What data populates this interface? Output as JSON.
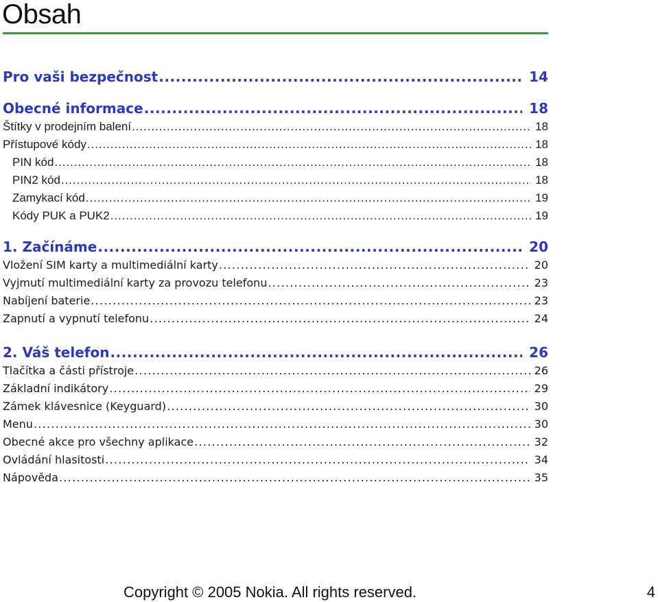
{
  "title": "Obsah",
  "colors": {
    "section_text": "#2a3bb5",
    "rule": "#3a9a3a",
    "body_text": "#1a1a1a"
  },
  "toc": {
    "sections": [
      {
        "label": "Pro vaši bezpečnost",
        "page": "14",
        "entries": []
      },
      {
        "label": "Obecné informace",
        "page": "18",
        "entries": [
          {
            "label": "Štítky v prodejním balení",
            "page": "18",
            "indent": false
          },
          {
            "label": "Přístupové kódy",
            "page": "18",
            "indent": false
          },
          {
            "label": "PIN kód",
            "page": "18",
            "indent": true
          },
          {
            "label": "PIN2 kód",
            "page": "18",
            "indent": true
          },
          {
            "label": "Zamykací kód",
            "page": "19",
            "indent": true
          },
          {
            "label": "Kódy PUK a PUK2",
            "page": "19",
            "indent": true
          }
        ]
      },
      {
        "label": "1. Začínáme",
        "page": "20",
        "entries": [
          {
            "label": "Vložení SIM karty a multimediální karty",
            "page": "20",
            "indent": false
          },
          {
            "label": "Vyjmutí multimediální karty za provozu telefonu",
            "page": "23",
            "indent": false
          },
          {
            "label": "Nabíjení baterie",
            "page": "23",
            "indent": false
          },
          {
            "label": "Zapnutí a vypnutí telefonu",
            "page": "24",
            "indent": false
          }
        ]
      },
      {
        "label": "2. Váš telefon",
        "page": "26",
        "entries": [
          {
            "label": "Tlačítka a části přístroje",
            "page": "26",
            "indent": false
          },
          {
            "label": "Základní indikátory",
            "page": "29",
            "indent": false
          },
          {
            "label": "Zámek klávesnice (Keyguard)",
            "page": "30",
            "indent": false
          },
          {
            "label": "Menu",
            "page": "30",
            "indent": false
          },
          {
            "label": "Obecné akce pro všechny aplikace",
            "page": "32",
            "indent": false
          },
          {
            "label": "Ovládání hlasitosti",
            "page": "34",
            "indent": false
          },
          {
            "label": "Nápověda",
            "page": "35",
            "indent": false
          }
        ]
      }
    ]
  },
  "footer": {
    "copyright": "Copyright © 2005 Nokia. All rights reserved.",
    "page_number": "4"
  }
}
